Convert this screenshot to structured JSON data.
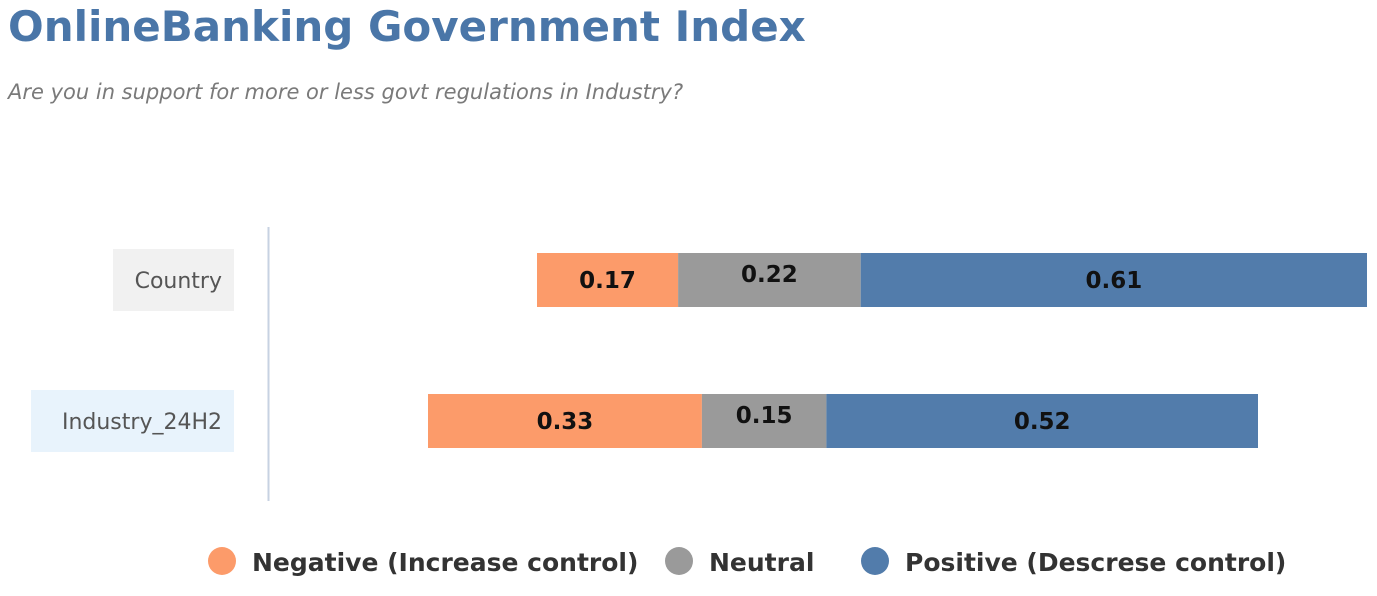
{
  "header": {
    "title": "OnlineBanking Government Index",
    "subtitle": "Are you in support for more or less govt regulations in Industry?"
  },
  "colors": {
    "title": "#4a76a8",
    "negative": "#fc9b6a",
    "neutral": "#9a9a9a",
    "positive": "#527cab",
    "label_bg_country": "#f1f1f1",
    "label_bg_industry": "#e8f3fc",
    "axis_line": "#c7d2e2"
  },
  "chart_data": {
    "type": "bar",
    "orientation": "horizontal",
    "stacked": true,
    "title": "OnlineBanking Government Index",
    "subtitle": "Are you in support for more or less govt regulations in Industry?",
    "categories": [
      "Country",
      "Industry_24H2"
    ],
    "series": [
      {
        "name": "Negative (Increase control)",
        "values": [
          0.17,
          0.33
        ]
      },
      {
        "name": "Neutral",
        "values": [
          0.22,
          0.15
        ]
      },
      {
        "name": "Positive (Descrese control)",
        "values": [
          0.61,
          0.52
        ]
      }
    ],
    "legend_position": "bottom",
    "grid": false
  }
}
